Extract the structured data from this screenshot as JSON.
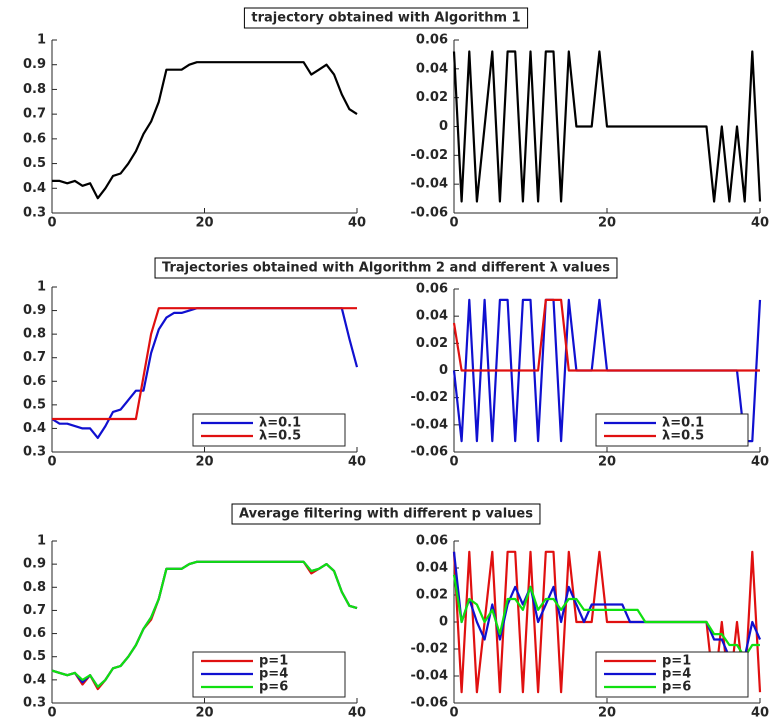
{
  "chart_data": [
    {
      "type": "line",
      "title": "trajectory obtained with Algorithm 1",
      "x": [
        0,
        1,
        2,
        3,
        4,
        5,
        6,
        7,
        8,
        9,
        10,
        11,
        12,
        13,
        14,
        15,
        16,
        17,
        18,
        19,
        20,
        21,
        22,
        23,
        24,
        25,
        26,
        27,
        28,
        29,
        30,
        31,
        32,
        33,
        34,
        35,
        36,
        37,
        38,
        39,
        40
      ],
      "series": [
        {
          "color": "#000000",
          "values": [
            0.43,
            0.43,
            0.42,
            0.43,
            0.41,
            0.42,
            0.36,
            0.4,
            0.45,
            0.46,
            0.5,
            0.55,
            0.62,
            0.67,
            0.75,
            0.88,
            0.88,
            0.88,
            0.9,
            0.91,
            0.91,
            0.91,
            0.91,
            0.91,
            0.91,
            0.91,
            0.91,
            0.91,
            0.91,
            0.91,
            0.91,
            0.91,
            0.91,
            0.91,
            0.86,
            0.88,
            0.9,
            0.86,
            0.78,
            0.72,
            0.7
          ]
        }
      ],
      "xlim": [
        0,
        40
      ],
      "ylim": [
        0.3,
        1
      ],
      "xticks": [
        0,
        20,
        40
      ],
      "yticks": [
        0.3,
        0.4,
        0.5,
        0.6,
        0.7,
        0.8,
        0.9,
        1
      ]
    },
    {
      "type": "line",
      "x": [
        0,
        1,
        2,
        3,
        4,
        5,
        6,
        7,
        8,
        9,
        10,
        11,
        12,
        13,
        14,
        15,
        16,
        17,
        18,
        19,
        20,
        21,
        22,
        23,
        24,
        25,
        26,
        27,
        28,
        29,
        30,
        31,
        32,
        33,
        34,
        35,
        36,
        37,
        38,
        39,
        40
      ],
      "series": [
        {
          "color": "#000000",
          "values": [
            0.052,
            -0.052,
            0.052,
            -0.052,
            0,
            0.052,
            -0.052,
            0.052,
            0.052,
            -0.052,
            0.052,
            -0.052,
            0.052,
            0.052,
            -0.052,
            0.052,
            0,
            0,
            0,
            0.052,
            0,
            0,
            0,
            0,
            0,
            0,
            0,
            0,
            0,
            0,
            0,
            0,
            0,
            0,
            -0.052,
            0,
            -0.052,
            0,
            -0.052,
            0.052,
            -0.052
          ]
        }
      ],
      "xlim": [
        0,
        40
      ],
      "ylim": [
        -0.06,
        0.06
      ],
      "xticks": [
        0,
        20,
        40
      ],
      "yticks": [
        -0.06,
        -0.04,
        -0.02,
        0,
        0.02,
        0.04,
        0.06
      ]
    },
    {
      "type": "line",
      "title": "Trajectories obtained with Algorithm 2 and different λ values",
      "x": [
        0,
        1,
        2,
        3,
        4,
        5,
        6,
        7,
        8,
        9,
        10,
        11,
        12,
        13,
        14,
        15,
        16,
        17,
        18,
        19,
        20,
        21,
        22,
        23,
        24,
        25,
        26,
        27,
        28,
        29,
        30,
        31,
        32,
        33,
        34,
        35,
        36,
        37,
        38,
        39,
        40
      ],
      "series": [
        {
          "name": "λ=0.1",
          "color": "#1010d0",
          "values": [
            0.44,
            0.42,
            0.42,
            0.41,
            0.4,
            0.4,
            0.36,
            0.41,
            0.47,
            0.48,
            0.52,
            0.56,
            0.56,
            0.72,
            0.82,
            0.87,
            0.89,
            0.89,
            0.9,
            0.91,
            0.91,
            0.91,
            0.91,
            0.91,
            0.91,
            0.91,
            0.91,
            0.91,
            0.91,
            0.91,
            0.91,
            0.91,
            0.91,
            0.91,
            0.91,
            0.91,
            0.91,
            0.91,
            0.91,
            0.78,
            0.66
          ]
        },
        {
          "name": "λ=0.5",
          "color": "#e01010",
          "values": [
            0.44,
            0.44,
            0.44,
            0.44,
            0.44,
            0.44,
            0.44,
            0.44,
            0.44,
            0.44,
            0.44,
            0.44,
            0.62,
            0.8,
            0.91,
            0.91,
            0.91,
            0.91,
            0.91,
            0.91,
            0.91,
            0.91,
            0.91,
            0.91,
            0.91,
            0.91,
            0.91,
            0.91,
            0.91,
            0.91,
            0.91,
            0.91,
            0.91,
            0.91,
            0.91,
            0.91,
            0.91,
            0.91,
            0.91,
            0.91,
            0.91
          ]
        }
      ],
      "xlim": [
        0,
        40
      ],
      "ylim": [
        0.3,
        1
      ],
      "xticks": [
        0,
        20,
        40
      ],
      "yticks": [
        0.3,
        0.4,
        0.5,
        0.6,
        0.7,
        0.8,
        0.9,
        1
      ],
      "legend": "lower right"
    },
    {
      "type": "line",
      "x": [
        0,
        1,
        2,
        3,
        4,
        5,
        6,
        7,
        8,
        9,
        10,
        11,
        12,
        13,
        14,
        15,
        16,
        17,
        18,
        19,
        20,
        21,
        22,
        23,
        24,
        25,
        26,
        27,
        28,
        29,
        30,
        31,
        32,
        33,
        34,
        35,
        36,
        37,
        38,
        39,
        40
      ],
      "series": [
        {
          "name": "λ=0.1",
          "color": "#1010d0",
          "values": [
            0,
            -0.052,
            0.052,
            -0.052,
            0.052,
            -0.052,
            0.052,
            0.052,
            -0.052,
            0.052,
            0.052,
            -0.052,
            0.052,
            0.052,
            -0.052,
            0.052,
            0,
            0,
            0,
            0.052,
            0,
            0,
            0,
            0,
            0,
            0,
            0,
            0,
            0,
            0,
            0,
            0,
            0,
            0,
            0,
            0,
            0,
            0,
            -0.052,
            -0.052,
            0.052
          ]
        },
        {
          "name": "λ=0.5",
          "color": "#e01010",
          "values": [
            0.035,
            0,
            0,
            0,
            0,
            0,
            0,
            0,
            0,
            0,
            0,
            0,
            0.052,
            0.052,
            0.052,
            0,
            0,
            0,
            0,
            0,
            0,
            0,
            0,
            0,
            0,
            0,
            0,
            0,
            0,
            0,
            0,
            0,
            0,
            0,
            0,
            0,
            0,
            0,
            0,
            0,
            0
          ]
        }
      ],
      "xlim": [
        0,
        40
      ],
      "ylim": [
        -0.06,
        0.06
      ],
      "xticks": [
        0,
        20,
        40
      ],
      "yticks": [
        -0.06,
        -0.04,
        -0.02,
        0,
        0.02,
        0.04,
        0.06
      ],
      "legend": "lower right"
    },
    {
      "type": "line",
      "title": "Average filtering with different p values",
      "x": [
        0,
        1,
        2,
        3,
        4,
        5,
        6,
        7,
        8,
        9,
        10,
        11,
        12,
        13,
        14,
        15,
        16,
        17,
        18,
        19,
        20,
        21,
        22,
        23,
        24,
        25,
        26,
        27,
        28,
        29,
        30,
        31,
        32,
        33,
        34,
        35,
        36,
        37,
        38,
        39,
        40
      ],
      "series": [
        {
          "name": "p=1",
          "color": "#e01010",
          "values": [
            0.44,
            0.43,
            0.42,
            0.43,
            0.38,
            0.42,
            0.36,
            0.4,
            0.45,
            0.46,
            0.5,
            0.55,
            0.62,
            0.66,
            0.75,
            0.88,
            0.88,
            0.88,
            0.9,
            0.91,
            0.91,
            0.91,
            0.91,
            0.91,
            0.91,
            0.91,
            0.91,
            0.91,
            0.91,
            0.91,
            0.91,
            0.91,
            0.91,
            0.91,
            0.86,
            0.88,
            0.9,
            0.87,
            0.78,
            0.72,
            0.71
          ]
        },
        {
          "name": "p=4",
          "color": "#1010d0",
          "values": [
            0.44,
            0.43,
            0.42,
            0.43,
            0.39,
            0.42,
            0.37,
            0.4,
            0.45,
            0.46,
            0.5,
            0.55,
            0.62,
            0.67,
            0.75,
            0.88,
            0.88,
            0.88,
            0.9,
            0.91,
            0.91,
            0.91,
            0.91,
            0.91,
            0.91,
            0.91,
            0.91,
            0.91,
            0.91,
            0.91,
            0.91,
            0.91,
            0.91,
            0.91,
            0.87,
            0.88,
            0.9,
            0.87,
            0.78,
            0.72,
            0.71
          ]
        },
        {
          "name": "p=6",
          "color": "#10e010",
          "values": [
            0.44,
            0.43,
            0.42,
            0.43,
            0.4,
            0.42,
            0.37,
            0.4,
            0.45,
            0.46,
            0.5,
            0.55,
            0.62,
            0.67,
            0.75,
            0.88,
            0.88,
            0.88,
            0.9,
            0.91,
            0.91,
            0.91,
            0.91,
            0.91,
            0.91,
            0.91,
            0.91,
            0.91,
            0.91,
            0.91,
            0.91,
            0.91,
            0.91,
            0.91,
            0.87,
            0.88,
            0.9,
            0.87,
            0.78,
            0.72,
            0.71
          ]
        }
      ],
      "xlim": [
        0,
        40
      ],
      "ylim": [
        0.3,
        1
      ],
      "xticks": [
        0,
        20,
        40
      ],
      "yticks": [
        0.3,
        0.4,
        0.5,
        0.6,
        0.7,
        0.8,
        0.9,
        1
      ],
      "legend": "lower right"
    },
    {
      "type": "line",
      "x": [
        0,
        1,
        2,
        3,
        4,
        5,
        6,
        7,
        8,
        9,
        10,
        11,
        12,
        13,
        14,
        15,
        16,
        17,
        18,
        19,
        20,
        21,
        22,
        23,
        24,
        25,
        26,
        27,
        28,
        29,
        30,
        31,
        32,
        33,
        34,
        35,
        36,
        37,
        38,
        39,
        40
      ],
      "series": [
        {
          "name": "p=1",
          "color": "#e01010",
          "values": [
            0.052,
            -0.052,
            0.052,
            -0.052,
            0,
            0.052,
            -0.052,
            0.052,
            0.052,
            -0.052,
            0.052,
            -0.052,
            0.052,
            0.052,
            -0.052,
            0.052,
            0,
            0,
            0,
            0.052,
            0,
            0,
            0,
            0,
            0,
            0,
            0,
            0,
            0,
            0,
            0,
            0,
            0,
            0,
            -0.052,
            0,
            -0.052,
            0,
            -0.052,
            0.052,
            -0.052
          ]
        },
        {
          "name": "p=4",
          "color": "#1010d0",
          "values": [
            0.052,
            0,
            0.017,
            0,
            -0.013,
            0.013,
            -0.013,
            0.013,
            0.026,
            0.013,
            0.026,
            0,
            0.013,
            0.026,
            0,
            0.026,
            0.013,
            0,
            0.013,
            0.013,
            0.013,
            0.013,
            0.013,
            0,
            0,
            0,
            0,
            0,
            0,
            0,
            0,
            0,
            0,
            0,
            -0.013,
            -0.013,
            -0.026,
            -0.026,
            -0.026,
            0,
            -0.013
          ]
        },
        {
          "name": "p=6",
          "color": "#10e010",
          "values": [
            0.035,
            0,
            0.017,
            0.013,
            0,
            0.009,
            -0.009,
            0.017,
            0.017,
            0.009,
            0.026,
            0.009,
            0.017,
            0.017,
            0.009,
            0.017,
            0.017,
            0.009,
            0.009,
            0.009,
            0.009,
            0.009,
            0.009,
            0.009,
            0.009,
            0,
            0,
            0,
            0,
            0,
            0,
            0,
            0,
            0,
            -0.009,
            -0.009,
            -0.017,
            -0.017,
            -0.026,
            -0.017,
            -0.017
          ]
        }
      ],
      "xlim": [
        0,
        40
      ],
      "ylim": [
        -0.06,
        0.06
      ],
      "xticks": [
        0,
        20,
        40
      ],
      "yticks": [
        -0.06,
        -0.04,
        -0.02,
        0,
        0.02,
        0.04,
        0.06
      ],
      "legend": "lower right"
    }
  ]
}
